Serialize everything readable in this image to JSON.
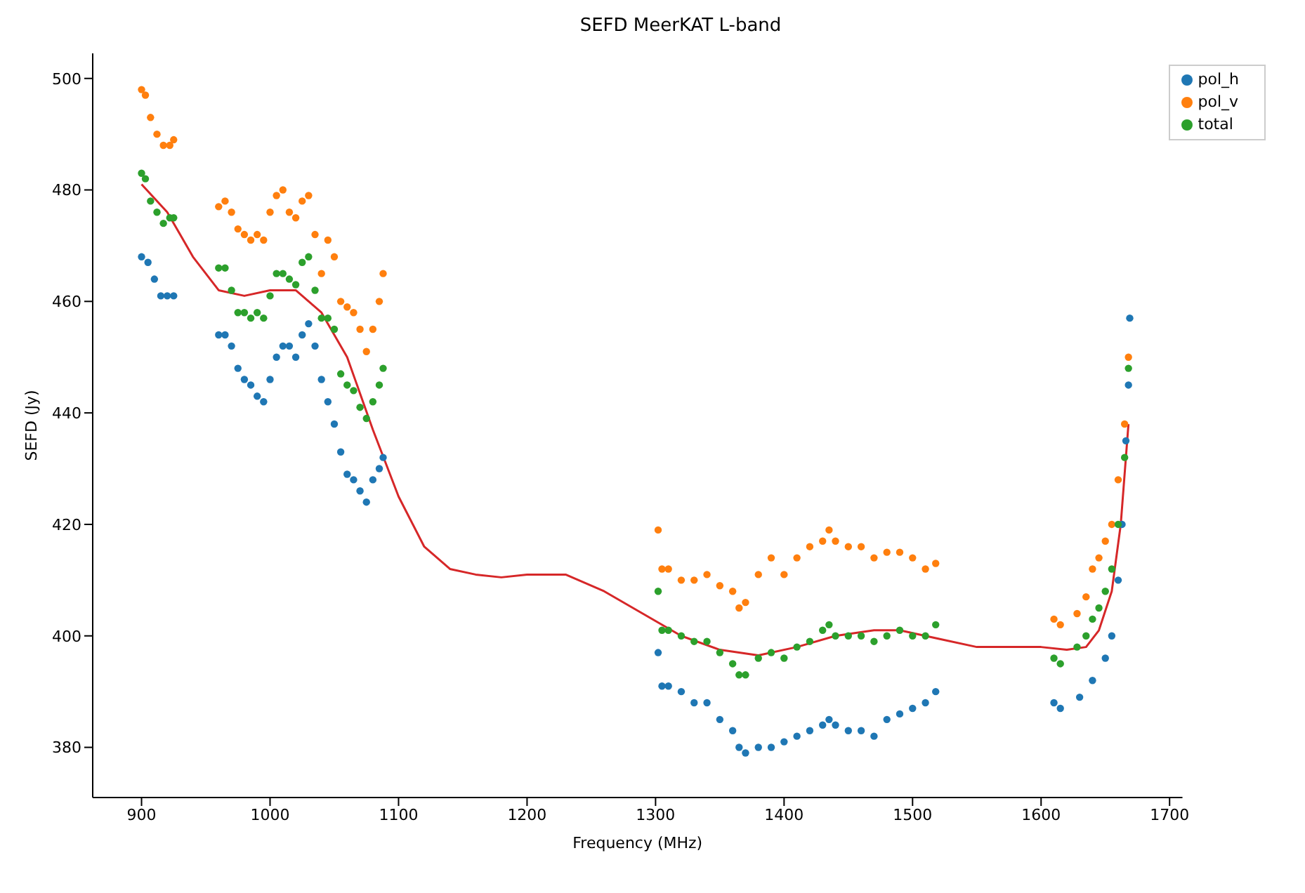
{
  "chart_data": {
    "type": "scatter",
    "title": "SEFD MeerKAT L-band",
    "xlabel": "Frequency (MHz)",
    "ylabel": "SEFD (Jy)",
    "xlim": [
      862,
      1710
    ],
    "ylim": [
      371,
      504.5
    ],
    "xticks": [
      900,
      1000,
      1100,
      1200,
      1300,
      1400,
      1500,
      1600,
      1700
    ],
    "yticks": [
      380,
      400,
      420,
      440,
      460,
      480,
      500
    ],
    "grid": false,
    "legend": "top right",
    "marker": "circle",
    "series": [
      {
        "name": "pol_h",
        "color": "#1f77b4",
        "x": [
          900,
          905,
          910,
          915,
          920,
          925,
          960,
          965,
          970,
          975,
          980,
          985,
          990,
          995,
          1000,
          1005,
          1010,
          1015,
          1020,
          1025,
          1030,
          1035,
          1040,
          1045,
          1050,
          1055,
          1060,
          1065,
          1070,
          1075,
          1080,
          1085,
          1088,
          1302,
          1305,
          1310,
          1320,
          1330,
          1340,
          1350,
          1360,
          1365,
          1370,
          1380,
          1390,
          1400,
          1410,
          1420,
          1430,
          1435,
          1440,
          1450,
          1460,
          1470,
          1480,
          1490,
          1500,
          1510,
          1518,
          1610,
          1615,
          1630,
          1640,
          1650,
          1655,
          1660,
          1663,
          1666,
          1668,
          1669
        ],
        "values": [
          468,
          467,
          464,
          461,
          461,
          461,
          454,
          454,
          452,
          448,
          446,
          445,
          443,
          442,
          446,
          450,
          452,
          452,
          450,
          454,
          456,
          452,
          446,
          442,
          438,
          433,
          429,
          428,
          426,
          424,
          428,
          430,
          432,
          397,
          391,
          391,
          390,
          388,
          388,
          385,
          383,
          380,
          379,
          380,
          380,
          381,
          382,
          383,
          384,
          385,
          384,
          383,
          383,
          382,
          385,
          386,
          387,
          388,
          390,
          388,
          387,
          389,
          392,
          396,
          400,
          410,
          420,
          435,
          445,
          457
        ]
      },
      {
        "name": "pol_v",
        "color": "#ff7f0e",
        "x": [
          900,
          903,
          907,
          912,
          917,
          922,
          925,
          960,
          965,
          970,
          975,
          980,
          985,
          990,
          995,
          1000,
          1005,
          1010,
          1015,
          1020,
          1025,
          1030,
          1035,
          1040,
          1045,
          1050,
          1055,
          1060,
          1065,
          1070,
          1075,
          1080,
          1085,
          1088,
          1302,
          1305,
          1310,
          1320,
          1330,
          1340,
          1350,
          1360,
          1365,
          1370,
          1380,
          1390,
          1400,
          1410,
          1420,
          1430,
          1435,
          1440,
          1450,
          1460,
          1470,
          1480,
          1490,
          1500,
          1510,
          1518,
          1610,
          1615,
          1628,
          1635,
          1640,
          1645,
          1650,
          1655,
          1660,
          1665,
          1668
        ],
        "values": [
          498,
          497,
          493,
          490,
          488,
          488,
          489,
          477,
          478,
          476,
          473,
          472,
          471,
          472,
          471,
          476,
          479,
          480,
          476,
          475,
          478,
          479,
          472,
          465,
          471,
          468,
          460,
          459,
          458,
          455,
          451,
          455,
          460,
          465,
          419,
          412,
          412,
          410,
          410,
          411,
          409,
          408,
          405,
          406,
          411,
          414,
          411,
          414,
          416,
          417,
          419,
          417,
          416,
          416,
          414,
          415,
          415,
          414,
          412,
          413,
          403,
          402,
          404,
          407,
          412,
          414,
          417,
          420,
          428,
          438,
          450
        ]
      },
      {
        "name": "total",
        "color": "#2ca02c",
        "x": [
          900,
          903,
          907,
          912,
          917,
          922,
          925,
          960,
          965,
          970,
          975,
          980,
          985,
          990,
          995,
          1000,
          1005,
          1010,
          1015,
          1020,
          1025,
          1030,
          1035,
          1040,
          1045,
          1050,
          1055,
          1060,
          1065,
          1070,
          1075,
          1080,
          1085,
          1088,
          1302,
          1305,
          1310,
          1320,
          1330,
          1340,
          1350,
          1360,
          1365,
          1370,
          1380,
          1390,
          1400,
          1410,
          1420,
          1430,
          1435,
          1440,
          1450,
          1460,
          1470,
          1480,
          1490,
          1500,
          1510,
          1518,
          1610,
          1615,
          1628,
          1635,
          1640,
          1645,
          1650,
          1655,
          1660,
          1665,
          1668
        ],
        "values": [
          483,
          482,
          478,
          476,
          474,
          475,
          475,
          466,
          466,
          462,
          458,
          458,
          457,
          458,
          457,
          461,
          465,
          465,
          464,
          463,
          467,
          468,
          462,
          457,
          457,
          455,
          447,
          445,
          444,
          441,
          439,
          442,
          445,
          448,
          408,
          401,
          401,
          400,
          399,
          399,
          397,
          395,
          393,
          393,
          396,
          397,
          396,
          398,
          399,
          401,
          402,
          400,
          400,
          400,
          399,
          400,
          401,
          400,
          400,
          402,
          396,
          395,
          398,
          400,
          403,
          405,
          408,
          412,
          420,
          432,
          448
        ]
      },
      {
        "type": "line",
        "color": "#d62728",
        "marker": "none",
        "x": [
          900,
          920,
          940,
          960,
          980,
          1000,
          1020,
          1040,
          1060,
          1080,
          1100,
          1120,
          1140,
          1160,
          1180,
          1200,
          1230,
          1260,
          1290,
          1320,
          1350,
          1380,
          1410,
          1440,
          1470,
          1490,
          1520,
          1550,
          1580,
          1600,
          1620,
          1635,
          1645,
          1655,
          1662,
          1668
        ],
        "values": [
          481,
          476,
          468,
          462,
          461,
          462,
          462,
          458,
          450,
          437,
          425,
          416,
          412,
          411,
          410.5,
          411,
          411,
          408,
          404,
          400,
          397.5,
          396.5,
          398,
          400,
          401,
          401,
          399.5,
          398,
          398,
          398,
          397.5,
          398,
          401,
          408,
          420,
          438
        ]
      }
    ]
  }
}
